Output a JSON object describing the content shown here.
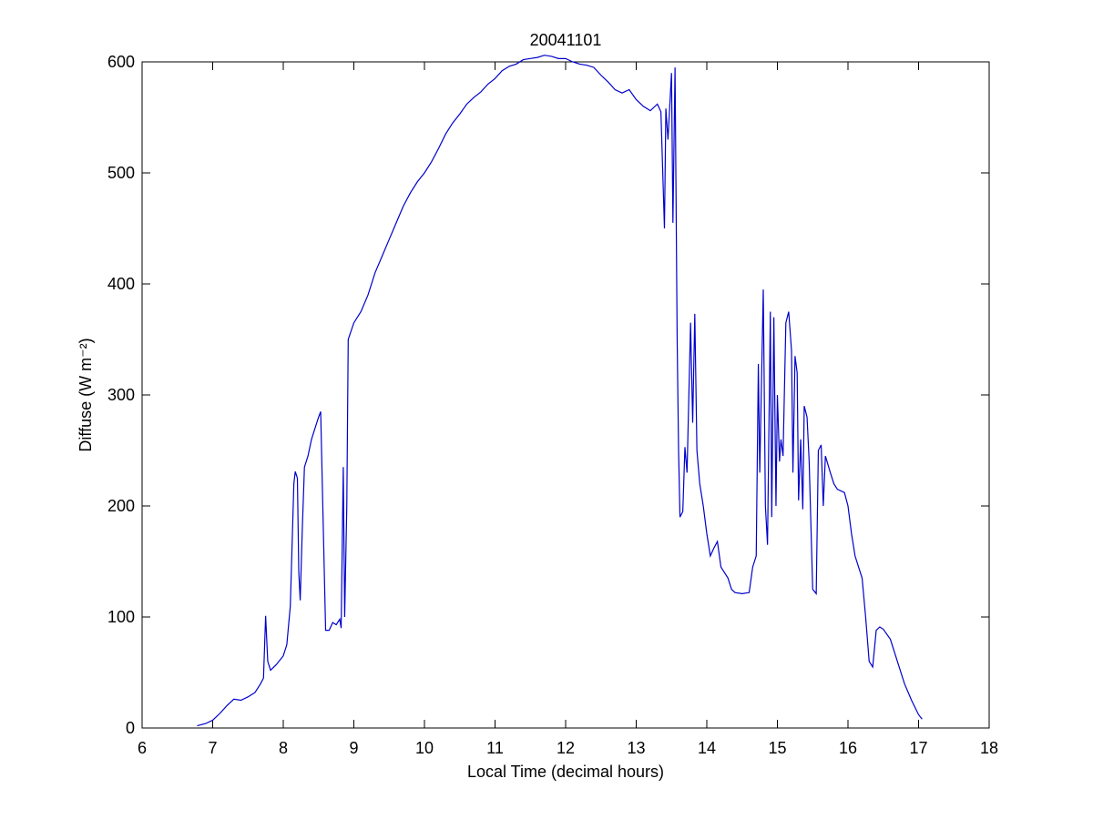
{
  "chart_data": {
    "type": "line",
    "title": "20041101",
    "x_label": "Local Time (decimal hours)",
    "y_label": "Diffuse (W m⁻²)",
    "xlim": [
      6,
      18
    ],
    "xticks": [
      6,
      7,
      8,
      9,
      10,
      11,
      12,
      13,
      14,
      15,
      16,
      17,
      18
    ],
    "ylim": [
      0,
      600
    ],
    "yticks": [
      0,
      100,
      200,
      300,
      400,
      500,
      600
    ],
    "color": "#0000cc",
    "x": [
      6.78,
      6.9,
      7.0,
      7.1,
      7.2,
      7.3,
      7.4,
      7.5,
      7.6,
      7.68,
      7.72,
      7.75,
      7.78,
      7.82,
      7.9,
      8.0,
      8.05,
      8.1,
      8.15,
      8.17,
      8.2,
      8.22,
      8.24,
      8.27,
      8.3,
      8.35,
      8.4,
      8.45,
      8.5,
      8.53,
      8.56,
      8.6,
      8.65,
      8.7,
      8.75,
      8.8,
      8.82,
      8.85,
      8.87,
      8.9,
      8.92,
      9.0,
      9.1,
      9.2,
      9.3,
      9.4,
      9.5,
      9.6,
      9.7,
      9.8,
      9.9,
      10.0,
      10.1,
      10.2,
      10.3,
      10.4,
      10.5,
      10.6,
      10.7,
      10.8,
      10.9,
      11.0,
      11.1,
      11.2,
      11.3,
      11.4,
      11.5,
      11.6,
      11.7,
      11.8,
      11.9,
      12.0,
      12.1,
      12.2,
      12.3,
      12.4,
      12.5,
      12.6,
      12.7,
      12.8,
      12.9,
      13.0,
      13.1,
      13.2,
      13.3,
      13.35,
      13.4,
      13.42,
      13.45,
      13.5,
      13.52,
      13.55,
      13.58,
      13.6,
      13.62,
      13.66,
      13.69,
      13.72,
      13.77,
      13.8,
      13.83,
      13.86,
      13.9,
      13.95,
      14.0,
      14.05,
      14.1,
      14.15,
      14.2,
      14.3,
      14.35,
      14.4,
      14.5,
      14.6,
      14.65,
      14.7,
      14.73,
      14.75,
      14.8,
      14.83,
      14.86,
      14.9,
      14.92,
      14.95,
      14.98,
      15.0,
      15.03,
      15.05,
      15.08,
      15.12,
      15.16,
      15.2,
      15.22,
      15.25,
      15.28,
      15.3,
      15.33,
      15.36,
      15.38,
      15.42,
      15.45,
      15.5,
      15.55,
      15.58,
      15.62,
      15.65,
      15.68,
      15.75,
      15.8,
      15.85,
      15.95,
      16.0,
      16.05,
      16.1,
      16.2,
      16.25,
      16.3,
      16.35,
      16.4,
      16.45,
      16.5,
      16.6,
      16.7,
      16.8,
      16.9,
      17.0,
      17.05
    ],
    "values": [
      2,
      4,
      7,
      13,
      20,
      26,
      25,
      28,
      32,
      40,
      45,
      101,
      60,
      52,
      57,
      65,
      75,
      110,
      220,
      231,
      225,
      140,
      115,
      180,
      235,
      245,
      260,
      270,
      280,
      285,
      200,
      88,
      88,
      95,
      93,
      98,
      90,
      235,
      100,
      200,
      350,
      365,
      375,
      390,
      410,
      425,
      440,
      455,
      470,
      482,
      492,
      500,
      510,
      522,
      535,
      545,
      553,
      562,
      568,
      573,
      580,
      585,
      592,
      596,
      598,
      602,
      603,
      604,
      606,
      605,
      603,
      603,
      600,
      598,
      597,
      595,
      588,
      582,
      575,
      572,
      575,
      566,
      560,
      556,
      562,
      555,
      450,
      558,
      530,
      590,
      455,
      595,
      350,
      250,
      190,
      195,
      253,
      230,
      365,
      275,
      373,
      250,
      220,
      200,
      175,
      155,
      162,
      168,
      145,
      135,
      125,
      122,
      121,
      122,
      145,
      155,
      328,
      230,
      395,
      200,
      165,
      375,
      190,
      370,
      200,
      300,
      240,
      260,
      245,
      365,
      375,
      340,
      230,
      335,
      320,
      205,
      260,
      197,
      290,
      280,
      240,
      125,
      121,
      250,
      255,
      200,
      245,
      230,
      220,
      215,
      212,
      200,
      175,
      155,
      135,
      100,
      60,
      55,
      88,
      91,
      89,
      80,
      60,
      40,
      25,
      12,
      8
    ]
  }
}
